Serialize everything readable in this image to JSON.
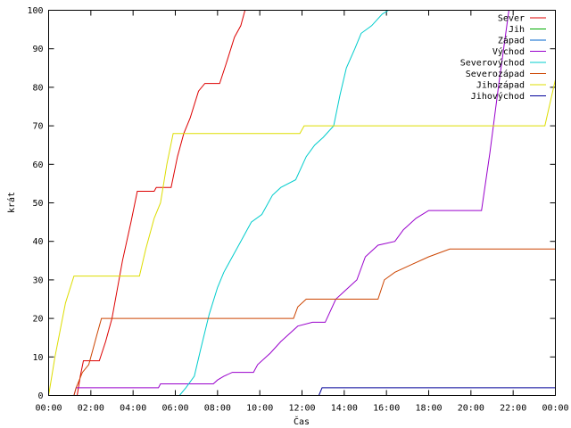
{
  "chart_data": {
    "type": "line",
    "title": "",
    "xlabel": "Čas",
    "ylabel": "krát",
    "xlim": [
      0,
      24
    ],
    "ylim": [
      0,
      100
    ],
    "grid": false,
    "legend_position": "top-right",
    "x_unit": "hours",
    "x_ticks": [
      0,
      2,
      4,
      6,
      8,
      10,
      12,
      14,
      16,
      18,
      20,
      22,
      24
    ],
    "x_tick_labels": [
      "00:00",
      "02:00",
      "04:00",
      "06:00",
      "08:00",
      "10:00",
      "12:00",
      "14:00",
      "16:00",
      "18:00",
      "20:00",
      "22:00",
      "00:00"
    ],
    "y_ticks": [
      0,
      10,
      20,
      30,
      40,
      50,
      60,
      70,
      80,
      90,
      100
    ],
    "y_tick_labels": [
      "0",
      "10",
      "20",
      "30",
      "40",
      "50",
      "60",
      "70",
      "80",
      "90",
      "100"
    ],
    "series": [
      {
        "name": "Sever",
        "color": "#dd0000",
        "points": [
          [
            1.35,
            0
          ],
          [
            1.5,
            5
          ],
          [
            1.65,
            9
          ],
          [
            2.4,
            9
          ],
          [
            2.7,
            14
          ],
          [
            3.0,
            20
          ],
          [
            3.5,
            35
          ],
          [
            3.9,
            45
          ],
          [
            4.2,
            53
          ],
          [
            5.0,
            53
          ],
          [
            5.1,
            54
          ],
          [
            5.8,
            54
          ],
          [
            6.1,
            62
          ],
          [
            6.4,
            68
          ],
          [
            6.7,
            72
          ],
          [
            7.1,
            79
          ],
          [
            7.4,
            81
          ],
          [
            8.1,
            81
          ],
          [
            8.4,
            86
          ],
          [
            8.8,
            93
          ],
          [
            9.1,
            96
          ],
          [
            9.3,
            100
          ]
        ]
      },
      {
        "name": "Jih",
        "color": "#00aa00",
        "points": []
      },
      {
        "name": "Západ",
        "color": "#0066cc",
        "points": []
      },
      {
        "name": "Východ",
        "color": "#9900cc",
        "points": [
          [
            1.2,
            0
          ],
          [
            1.3,
            2
          ],
          [
            5.2,
            2
          ],
          [
            5.3,
            3
          ],
          [
            7.8,
            3
          ],
          [
            8.0,
            4
          ],
          [
            8.3,
            5
          ],
          [
            8.7,
            6
          ],
          [
            9.7,
            6
          ],
          [
            9.9,
            8
          ],
          [
            10.5,
            11
          ],
          [
            11.0,
            14
          ],
          [
            11.4,
            16
          ],
          [
            11.8,
            18
          ],
          [
            12.5,
            19
          ],
          [
            13.1,
            19
          ],
          [
            13.6,
            25
          ],
          [
            14.0,
            27
          ],
          [
            14.6,
            30
          ],
          [
            15.0,
            36
          ],
          [
            15.6,
            39
          ],
          [
            16.4,
            40
          ],
          [
            16.8,
            43
          ],
          [
            17.4,
            46
          ],
          [
            18.0,
            48
          ],
          [
            20.5,
            48
          ],
          [
            20.9,
            63
          ],
          [
            21.3,
            80
          ],
          [
            21.8,
            100
          ]
        ]
      },
      {
        "name": "Severovýchod",
        "color": "#00cccc",
        "points": [
          [
            6.2,
            0
          ],
          [
            6.5,
            2
          ],
          [
            6.9,
            5
          ],
          [
            7.2,
            12
          ],
          [
            7.6,
            21
          ],
          [
            8.0,
            28
          ],
          [
            8.3,
            32
          ],
          [
            8.7,
            36
          ],
          [
            9.1,
            40
          ],
          [
            9.6,
            45
          ],
          [
            10.1,
            47
          ],
          [
            10.6,
            52
          ],
          [
            11.0,
            54
          ],
          [
            11.7,
            56
          ],
          [
            12.2,
            62
          ],
          [
            12.6,
            65
          ],
          [
            13.0,
            67
          ],
          [
            13.5,
            70
          ],
          [
            13.8,
            78
          ],
          [
            14.1,
            85
          ],
          [
            14.5,
            90
          ],
          [
            14.8,
            94
          ],
          [
            15.3,
            96
          ],
          [
            15.8,
            99
          ],
          [
            16.1,
            100
          ]
        ]
      },
      {
        "name": "Severozápad",
        "color": "#cc4400",
        "points": [
          [
            1.2,
            0
          ],
          [
            1.3,
            2
          ],
          [
            1.6,
            6
          ],
          [
            1.9,
            8
          ],
          [
            2.1,
            12
          ],
          [
            2.3,
            16
          ],
          [
            2.5,
            20
          ],
          [
            11.6,
            20
          ],
          [
            11.8,
            23
          ],
          [
            12.2,
            25
          ],
          [
            15.6,
            25
          ],
          [
            15.9,
            30
          ],
          [
            16.4,
            32
          ],
          [
            17.2,
            34
          ],
          [
            18.0,
            36
          ],
          [
            19.0,
            38
          ],
          [
            24.0,
            38
          ]
        ]
      },
      {
        "name": "Jihozápad",
        "color": "#dddd00",
        "points": [
          [
            0.0,
            0
          ],
          [
            0.3,
            10
          ],
          [
            0.8,
            24
          ],
          [
            1.2,
            31
          ],
          [
            4.3,
            31
          ],
          [
            4.6,
            38
          ],
          [
            5.0,
            46
          ],
          [
            5.3,
            50
          ],
          [
            5.6,
            60
          ],
          [
            5.9,
            68
          ],
          [
            11.9,
            68
          ],
          [
            12.1,
            70
          ],
          [
            23.5,
            70
          ],
          [
            24.0,
            82
          ]
        ]
      },
      {
        "name": "Jihovýchod",
        "color": "#000099",
        "points": [
          [
            12.8,
            0
          ],
          [
            12.95,
            2
          ],
          [
            24.0,
            2
          ]
        ]
      }
    ]
  }
}
